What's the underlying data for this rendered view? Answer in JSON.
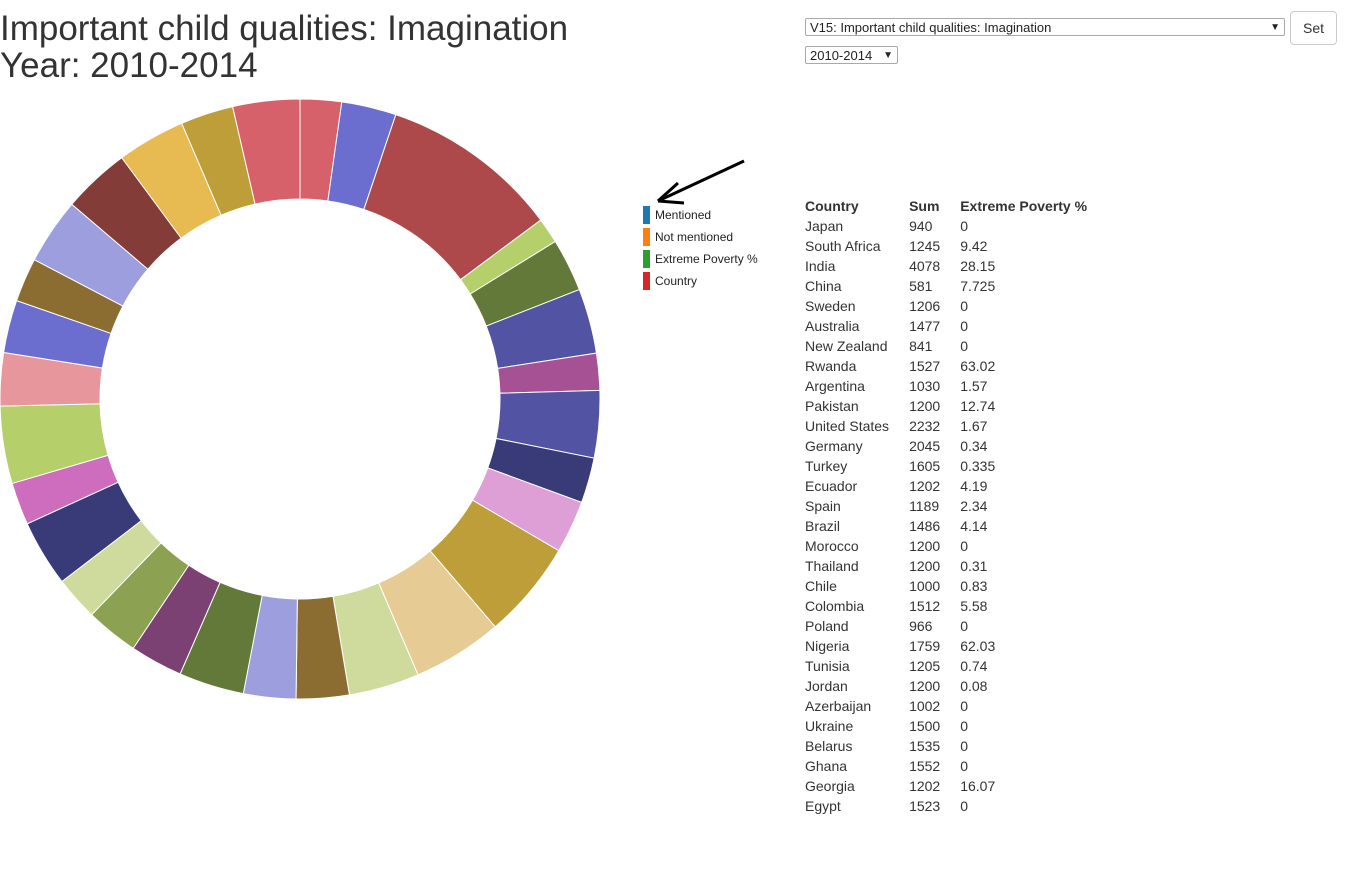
{
  "title": {
    "line1": "Important child qualities: Imagination",
    "line2": "Year: 2010-2014"
  },
  "controls": {
    "variable_select": "V15: Important child qualities: Imagination",
    "year_select": "2010-2014",
    "set_button": "Set"
  },
  "legend": [
    {
      "label": "Mentioned",
      "color": "#1f77b4"
    },
    {
      "label": "Not mentioned",
      "color": "#ff7f0e"
    },
    {
      "label": "Extreme Poverty %",
      "color": "#2ca02c"
    },
    {
      "label": "Country",
      "color": "#d62728"
    }
  ],
  "table": {
    "headers": [
      "Country",
      "Sum",
      "Extreme Poverty %"
    ],
    "rows": [
      [
        "Japan",
        "940",
        "0"
      ],
      [
        "South Africa",
        "1245",
        "9.42"
      ],
      [
        "India",
        "4078",
        "28.15"
      ],
      [
        "China",
        "581",
        "7.725"
      ],
      [
        "Sweden",
        "1206",
        "0"
      ],
      [
        "Australia",
        "1477",
        "0"
      ],
      [
        "New Zealand",
        "841",
        "0"
      ],
      [
        "Rwanda",
        "1527",
        "63.02"
      ],
      [
        "Argentina",
        "1030",
        "1.57"
      ],
      [
        "Pakistan",
        "1200",
        "12.74"
      ],
      [
        "United States",
        "2232",
        "1.67"
      ],
      [
        "Germany",
        "2045",
        "0.34"
      ],
      [
        "Turkey",
        "1605",
        "0.335"
      ],
      [
        "Ecuador",
        "1202",
        "4.19"
      ],
      [
        "Spain",
        "1189",
        "2.34"
      ],
      [
        "Brazil",
        "1486",
        "4.14"
      ],
      [
        "Morocco",
        "1200",
        "0"
      ],
      [
        "Thailand",
        "1200",
        "0.31"
      ],
      [
        "Chile",
        "1000",
        "0.83"
      ],
      [
        "Colombia",
        "1512",
        "5.58"
      ],
      [
        "Poland",
        "966",
        "0"
      ],
      [
        "Nigeria",
        "1759",
        "62.03"
      ],
      [
        "Tunisia",
        "1205",
        "0.74"
      ],
      [
        "Jordan",
        "1200",
        "0.08"
      ],
      [
        "Azerbaijan",
        "1002",
        "0"
      ],
      [
        "Ukraine",
        "1500",
        "0"
      ],
      [
        "Belarus",
        "1535",
        "0"
      ],
      [
        "Ghana",
        "1552",
        "0"
      ],
      [
        "Georgia",
        "1202",
        "16.07"
      ],
      [
        "Egypt",
        "1523",
        "0"
      ]
    ]
  },
  "chart_data": {
    "type": "pie",
    "title": "Important child qualities: Imagination",
    "categories": [
      "Japan",
      "South Africa",
      "India",
      "China",
      "Sweden",
      "Australia",
      "New Zealand",
      "Rwanda",
      "Argentina",
      "Pakistan",
      "United States",
      "Germany",
      "Turkey",
      "Ecuador",
      "Spain",
      "Brazil",
      "Morocco",
      "Thailand",
      "Chile",
      "Colombia",
      "Poland",
      "Nigeria",
      "Tunisia",
      "Jordan",
      "Azerbaijan",
      "Ukraine",
      "Belarus",
      "Ghana",
      "Georgia",
      "Egypt"
    ],
    "values": [
      940,
      1245,
      4078,
      581,
      1206,
      1477,
      841,
      1527,
      1030,
      1200,
      2232,
      2045,
      1605,
      1202,
      1189,
      1486,
      1200,
      1200,
      1000,
      1512,
      966,
      1759,
      1205,
      1200,
      1002,
      1500,
      1535,
      1552,
      1202,
      1523
    ],
    "colors": [
      "#d6616b",
      "#6b6ecf",
      "#ad494a",
      "#b5cf6b",
      "#637939",
      "#5254a3",
      "#a55194",
      "#5254a3",
      "#393b79",
      "#de9ed6",
      "#bd9e39",
      "#e7cb94",
      "#cedb9c",
      "#8c6d31",
      "#9c9ede",
      "#637939",
      "#7b4173",
      "#8ca252",
      "#cedb9c",
      "#393b79",
      "#ce6dbd",
      "#b5cf6b",
      "#e7969c",
      "#6b6ecf",
      "#8c6d31",
      "#9c9ede",
      "#843c39",
      "#e7ba52",
      "#bd9e39",
      "#d6616b"
    ],
    "donut": true
  }
}
